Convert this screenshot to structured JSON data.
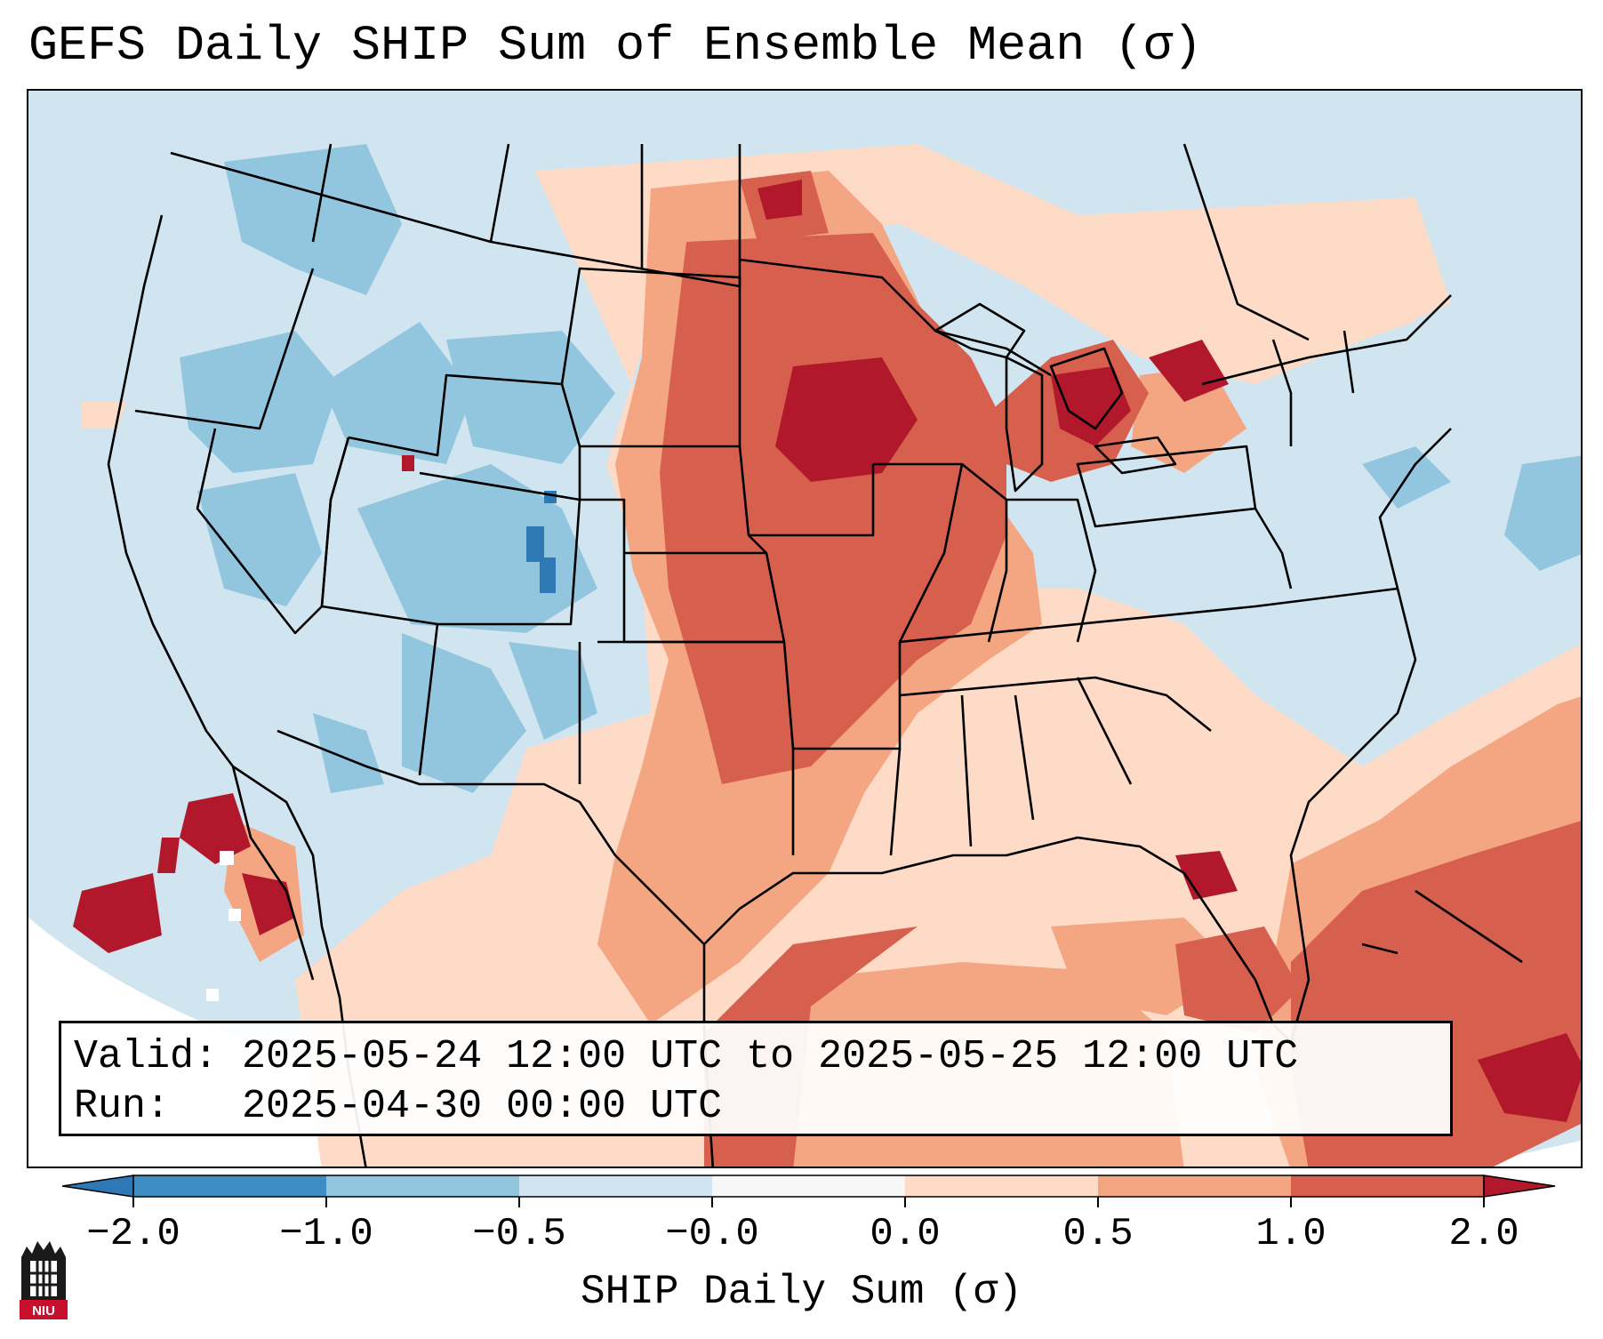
{
  "title": "GEFS Daily SHIP Sum of Ensemble Mean (σ)",
  "info": {
    "valid_line": "Valid: 2025-05-24 12:00 UTC to 2025-05-25 12:00 UTC",
    "run_line": "Run:   2025-04-30 00:00 UTC"
  },
  "colorbar": {
    "label": "SHIP Daily Sum (σ)",
    "ticks": [
      "−2.0",
      "−1.0",
      "−0.5",
      "−0.0",
      "0.0",
      "0.5",
      "1.0",
      "2.0"
    ],
    "bins": [
      {
        "from": "<-2.0",
        "color": "#2e78b5"
      },
      {
        "from": "-2.0",
        "to": "-1.0",
        "color": "#3f8ec3"
      },
      {
        "from": "-1.0",
        "to": "-0.5",
        "color": "#92c5de"
      },
      {
        "from": "-0.5",
        "to": "-0.0",
        "color": "#d1e5f0"
      },
      {
        "from": "-0.0",
        "to": "0.0",
        "color": "#f7f7f7"
      },
      {
        "from": "0.0",
        "to": "0.5",
        "color": "#fddbc7"
      },
      {
        "from": "0.5",
        "to": "1.0",
        "color": "#f4a582"
      },
      {
        "from": "1.0",
        "to": "2.0",
        "color": "#d6604d"
      },
      {
        "from": ">2.0",
        "color": "#b2182b"
      }
    ]
  },
  "map": {
    "projection": "Lambert conformal (CONUS)",
    "borders": "US states, Canada provinces, Mexico, coastlines",
    "extend": "both"
  },
  "logo": {
    "text": "NIU"
  }
}
